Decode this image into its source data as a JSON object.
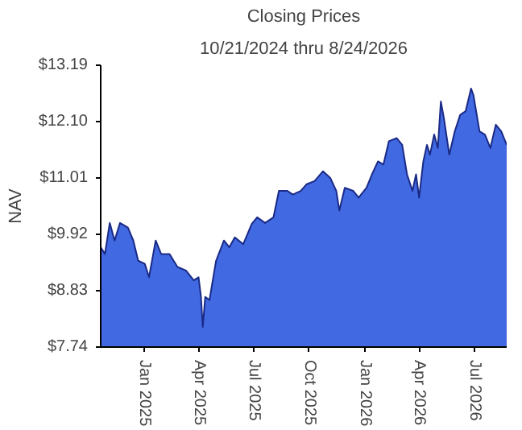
{
  "chart_data": {
    "type": "area",
    "title": "Closing Prices",
    "subtitle": "10/21/2024 thru 8/24/2026",
    "ylabel": "NAV",
    "x": [
      "2024-10-21",
      "2024-10-28",
      "2024-11-05",
      "2024-11-13",
      "2024-11-22",
      "2024-12-05",
      "2024-12-14",
      "2024-12-22",
      "2025-01-02",
      "2025-01-09",
      "2025-01-20",
      "2025-01-29",
      "2025-02-12",
      "2025-02-25",
      "2025-03-11",
      "2025-03-24",
      "2025-04-01",
      "2025-04-05",
      "2025-04-08",
      "2025-04-12",
      "2025-04-19",
      "2025-04-30",
      "2025-05-13",
      "2025-05-22",
      "2025-05-31",
      "2025-06-14",
      "2025-06-28",
      "2025-07-07",
      "2025-07-20",
      "2025-08-03",
      "2025-08-12",
      "2025-08-26",
      "2025-09-04",
      "2025-09-17",
      "2025-09-27",
      "2025-10-10",
      "2025-10-24",
      "2025-11-05",
      "2025-11-15",
      "2025-11-20",
      "2025-11-29",
      "2025-12-13",
      "2025-12-22",
      "2026-01-04",
      "2026-01-13",
      "2026-01-23",
      "2026-02-01",
      "2026-02-10",
      "2026-02-23",
      "2026-03-04",
      "2026-03-12",
      "2026-03-21",
      "2026-03-27",
      "2026-04-01",
      "2026-04-08",
      "2026-04-14",
      "2026-04-19",
      "2026-04-26",
      "2026-05-02",
      "2026-05-07",
      "2026-05-12",
      "2026-05-21",
      "2026-05-30",
      "2026-06-08",
      "2026-06-17",
      "2026-06-26",
      "2026-06-30",
      "2026-07-10",
      "2026-07-19",
      "2026-07-28",
      "2026-08-06",
      "2026-08-15",
      "2026-08-24"
    ],
    "series": [
      {
        "color": "#4169e1",
        "values": [
          9.67,
          9.54,
          10.14,
          9.8,
          10.14,
          10.05,
          9.8,
          9.41,
          9.35,
          9.09,
          9.8,
          9.54,
          9.54,
          9.29,
          9.22,
          9.03,
          9.09,
          8.71,
          8.13,
          8.71,
          8.65,
          9.41,
          9.8,
          9.67,
          9.86,
          9.73,
          10.12,
          10.25,
          10.14,
          10.25,
          10.76,
          10.76,
          10.69,
          10.76,
          10.89,
          10.95,
          11.14,
          11.01,
          10.76,
          10.38,
          10.82,
          10.76,
          10.63,
          10.82,
          11.08,
          11.33,
          11.27,
          11.72,
          11.78,
          11.65,
          11.08,
          10.76,
          11.08,
          10.63,
          11.33,
          11.65,
          11.46,
          11.85,
          11.59,
          12.49,
          12.17,
          11.46,
          11.91,
          12.23,
          12.3,
          12.74,
          12.61,
          11.91,
          11.85,
          11.59,
          12.04,
          11.91,
          11.65
        ]
      }
    ],
    "xlim": [
      "2024-10-21",
      "2026-08-24"
    ],
    "xticks": [
      {
        "value": "2025-01-01",
        "label": "Jan 2025"
      },
      {
        "value": "2025-04-01",
        "label": "Apr 2025"
      },
      {
        "value": "2025-07-01",
        "label": "Jul 2025"
      },
      {
        "value": "2025-10-01",
        "label": "Oct 2025"
      },
      {
        "value": "2026-01-01",
        "label": "Jan 2026"
      },
      {
        "value": "2026-04-01",
        "label": "Apr 2026"
      },
      {
        "value": "2026-07-01",
        "label": "Jul 2026"
      }
    ],
    "ylim": [
      7.74,
      13.19
    ],
    "yticks": [
      {
        "value": 7.74,
        "label": "$7.74"
      },
      {
        "value": 8.83,
        "label": "$8.83"
      },
      {
        "value": 9.92,
        "label": "$9.92"
      },
      {
        "value": 11.01,
        "label": "$11.01"
      },
      {
        "value": 12.1,
        "label": "$12.10"
      },
      {
        "value": 13.19,
        "label": "$13.19"
      }
    ],
    "grid": false
  }
}
